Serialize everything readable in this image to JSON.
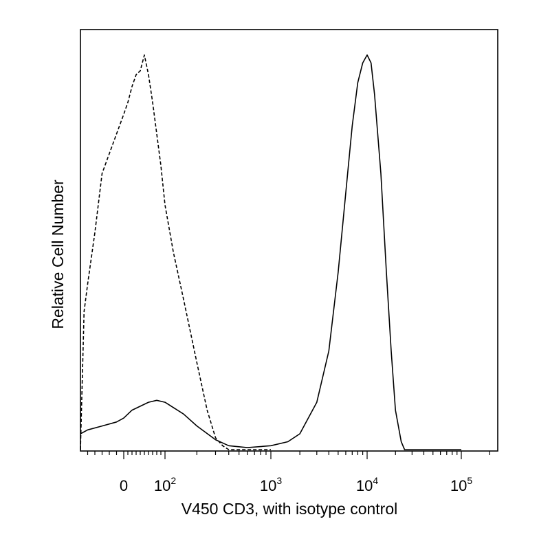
{
  "chart_data": {
    "type": "line",
    "title": "",
    "xlabel": "V450 CD3, with isotype control",
    "ylabel": "Relative Cell Number",
    "x_scale": "biexponential (log above 10^2)",
    "xlim": [
      -60,
      250000
    ],
    "ylim": [
      0,
      1
    ],
    "y_ticks": "none",
    "grid": false,
    "legend": "none",
    "x_tick_labels": [
      {
        "value": 0,
        "label": "0",
        "sup": ""
      },
      {
        "value": 100,
        "label": "10",
        "sup": "2"
      },
      {
        "value": 1000,
        "label": "10",
        "sup": "3"
      },
      {
        "value": 10000,
        "label": "10",
        "sup": "4"
      },
      {
        "value": 100000,
        "label": "10",
        "sup": "5"
      }
    ],
    "series": [
      {
        "style": "solid",
        "color": "#000000",
        "x": [
          -60,
          -50,
          -30,
          -10,
          0,
          10,
          20,
          40,
          60,
          80,
          100,
          150,
          200,
          300,
          400,
          600,
          1000,
          1500,
          2000,
          3000,
          4000,
          5000,
          6000,
          7000,
          8000,
          9000,
          10000,
          11000,
          12000,
          14000,
          16000,
          18000,
          20000,
          23000,
          25000,
          40000,
          100000,
          250000
        ],
        "y": [
          0.04,
          0.05,
          0.06,
          0.07,
          0.08,
          0.09,
          0.1,
          0.11,
          0.12,
          0.125,
          0.12,
          0.09,
          0.06,
          0.025,
          0.01,
          0.005,
          0.01,
          0.02,
          0.04,
          0.12,
          0.25,
          0.45,
          0.65,
          0.82,
          0.93,
          0.98,
          1.0,
          0.98,
          0.9,
          0.7,
          0.45,
          0.25,
          0.1,
          0.02,
          0.0,
          0.0,
          0.0,
          0.0
        ]
      },
      {
        "style": "dashed",
        "color": "#000000",
        "x": [
          -60,
          -55,
          -50,
          -40,
          -30,
          -20,
          -10,
          0,
          10,
          20,
          30,
          40,
          50,
          60,
          70,
          80,
          90,
          100,
          120,
          150,
          200,
          250,
          300,
          350,
          400,
          500,
          700,
          1000,
          250000
        ],
        "y": [
          0.0,
          0.35,
          0.42,
          0.55,
          0.7,
          0.75,
          0.8,
          0.85,
          0.88,
          0.92,
          0.95,
          0.96,
          1.0,
          0.95,
          0.88,
          0.8,
          0.72,
          0.62,
          0.5,
          0.38,
          0.22,
          0.1,
          0.03,
          0.01,
          0.0,
          0.0,
          0.0,
          0.0,
          0.0
        ]
      }
    ]
  }
}
